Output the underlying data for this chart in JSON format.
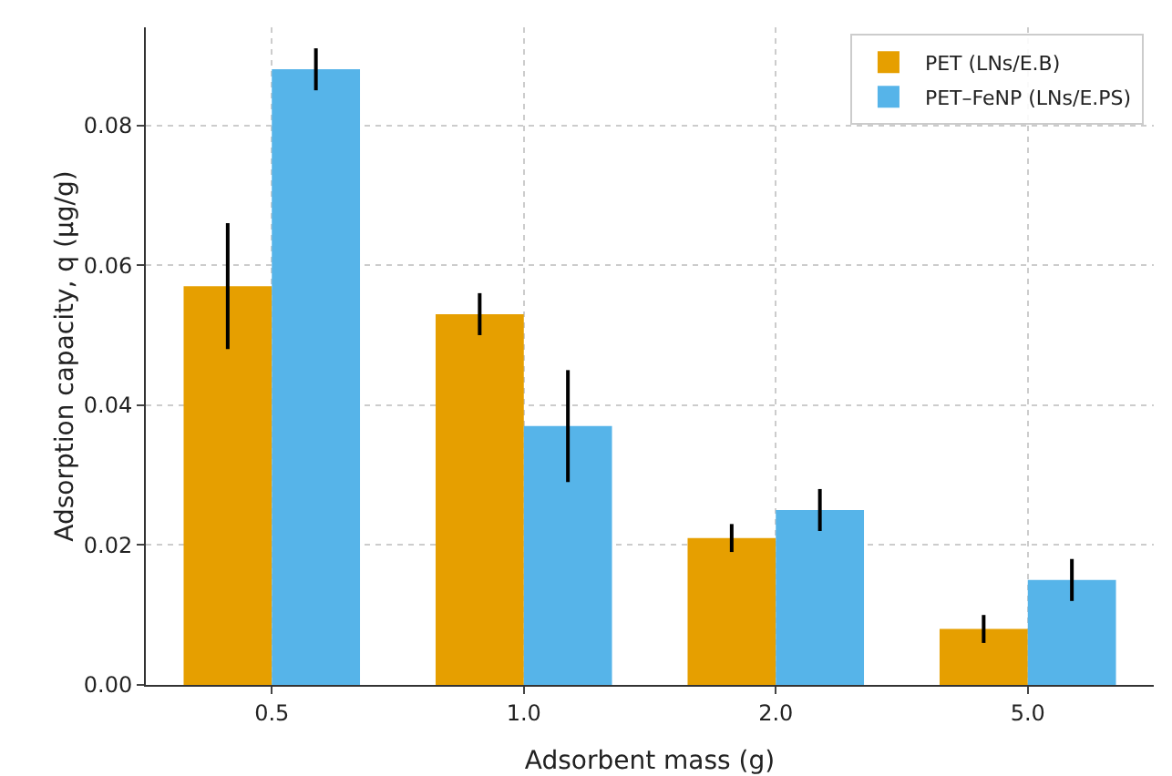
{
  "chart_data": {
    "type": "bar",
    "xlabel": "Adsorbent mass (g)",
    "ylabel": "Adsorption capacity, q (μg/g)",
    "categories": [
      "0.5",
      "1.0",
      "2.0",
      "5.0"
    ],
    "series": [
      {
        "name": "PET (LNs/E.B)",
        "color": "#e69f00",
        "values": [
          0.057,
          0.053,
          0.021,
          0.008
        ],
        "errors": [
          0.009,
          0.003,
          0.002,
          0.002
        ]
      },
      {
        "name": "PET–FeNP (LNs/E.PS)",
        "color": "#56b4e9",
        "values": [
          0.088,
          0.037,
          0.025,
          0.015
        ],
        "errors": [
          0.003,
          0.008,
          0.003,
          0.003
        ]
      }
    ],
    "ylim": [
      0,
      0.094
    ],
    "yticks": [
      {
        "value": 0,
        "label": "0.00"
      },
      0.02,
      0.04,
      0.06,
      0.08
    ],
    "grid": true,
    "legend": "top right"
  }
}
